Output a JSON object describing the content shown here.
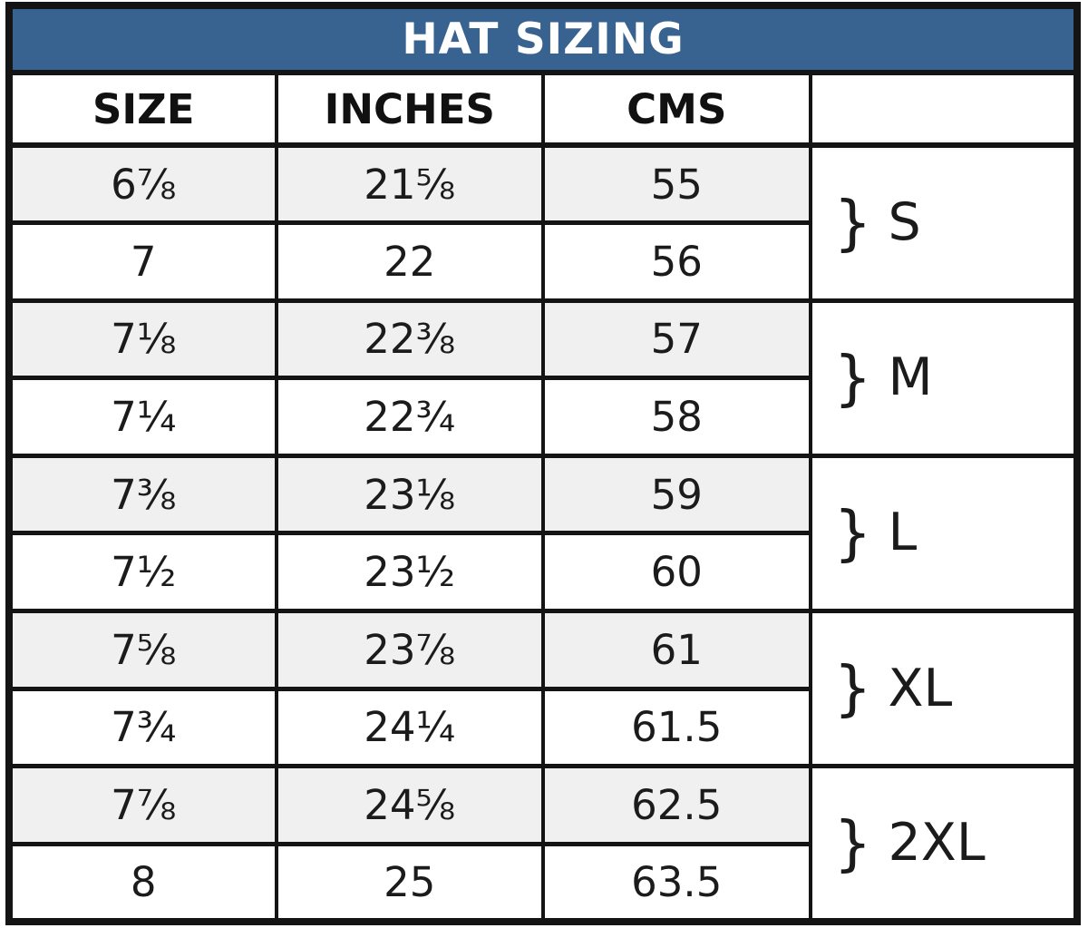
{
  "title": "HAT SIZING",
  "columns": {
    "size": "SIZE",
    "inches": "INCHES",
    "cms": "CMS",
    "group": ""
  },
  "rows": [
    {
      "size": "6⅞",
      "inches": "21⅝",
      "cms": "55"
    },
    {
      "size": "7",
      "inches": "22",
      "cms": "56"
    },
    {
      "size": "7⅛",
      "inches": "22⅜",
      "cms": "57"
    },
    {
      "size": "7¼",
      "inches": "22¾",
      "cms": "58"
    },
    {
      "size": "7⅜",
      "inches": "23⅛",
      "cms": "59"
    },
    {
      "size": "7½",
      "inches": "23½",
      "cms": "60"
    },
    {
      "size": "7⅝",
      "inches": "23⅞",
      "cms": "61"
    },
    {
      "size": "7¾",
      "inches": "24¼",
      "cms": "61.5"
    },
    {
      "size": "7⅞",
      "inches": "24⅝",
      "cms": "62.5"
    },
    {
      "size": "8",
      "inches": "25",
      "cms": "63.5"
    }
  ],
  "groups": [
    {
      "brace": "}",
      "label": "S"
    },
    {
      "brace": "}",
      "label": "M"
    },
    {
      "brace": "}",
      "label": "L"
    },
    {
      "brace": "}",
      "label": "XL"
    },
    {
      "brace": "}",
      "label": "2XL"
    }
  ],
  "colors": {
    "header_blue": "#38628F",
    "border_black": "#141414",
    "row_shade": "#F0F0F0",
    "title_text": "#FFFFFF"
  },
  "chart_data": {
    "type": "table",
    "title": "HAT SIZING",
    "columns": [
      "SIZE",
      "INCHES",
      "CMS",
      ""
    ],
    "rows": [
      [
        "6⅞",
        "21⅝",
        "55",
        "S"
      ],
      [
        "7",
        "22",
        "56",
        "S"
      ],
      [
        "7⅛",
        "22⅜",
        "57",
        "M"
      ],
      [
        "7¼",
        "22¾",
        "58",
        "M"
      ],
      [
        "7⅜",
        "23⅛",
        "59",
        "L"
      ],
      [
        "7½",
        "23½",
        "60",
        "L"
      ],
      [
        "7⅝",
        "23⅞",
        "61",
        "XL"
      ],
      [
        "7¾",
        "24¼",
        "61.5",
        "XL"
      ],
      [
        "7⅞",
        "24⅝",
        "62.5",
        "2XL"
      ],
      [
        "8",
        "25",
        "63.5",
        "2XL"
      ]
    ],
    "layout_hints": {
      "row_shading": "odd data rows light gray",
      "group_column": "brace + size label spans two rows",
      "title_bar": "white bold text on steel blue"
    }
  }
}
